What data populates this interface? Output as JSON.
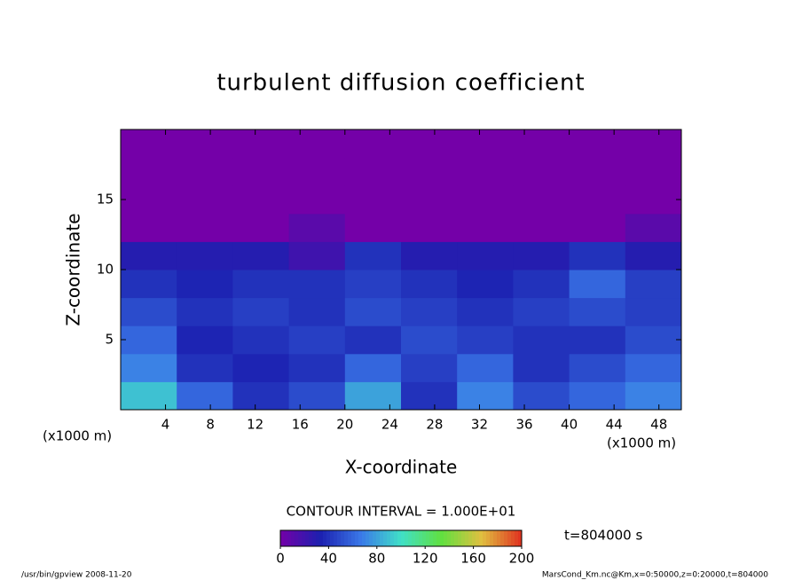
{
  "chart_data": {
    "type": "heatmap",
    "title": "turbulent diffusion coefficient",
    "x_label": "X-coordinate",
    "y_label": "Z-coordinate",
    "x_unit": "(x1000 m)",
    "y_unit": "(x1000 m)",
    "contour_interval": "CONTOUR INTERVAL = 1.000E+01",
    "time_label": "t=804000 s",
    "footer_left": "/usr/bin/gpview  2008-11-20",
    "footer_right": "MarsCond_Km.nc@Km,x=0:50000,z=0:20000,t=804000",
    "xlim": [
      0,
      50
    ],
    "ylim": [
      0,
      20
    ],
    "xticks": [
      4,
      8,
      12,
      16,
      20,
      24,
      28,
      32,
      36,
      40,
      44,
      48
    ],
    "yticks": [
      5,
      10,
      15
    ],
    "x": [
      2.5,
      7.5,
      12.5,
      17.5,
      22.5,
      27.5,
      32.5,
      37.5,
      42.5,
      47.5
    ],
    "z": [
      1,
      3,
      5,
      7,
      9,
      11,
      13,
      15,
      17,
      19
    ],
    "values": [
      [
        90,
        60,
        40,
        50,
        80,
        40,
        70,
        50,
        60,
        70
      ],
      [
        70,
        40,
        35,
        40,
        60,
        45,
        60,
        40,
        50,
        60
      ],
      [
        60,
        35,
        40,
        45,
        40,
        50,
        45,
        40,
        40,
        50
      ],
      [
        50,
        40,
        45,
        40,
        50,
        45,
        40,
        45,
        50,
        45
      ],
      [
        40,
        35,
        40,
        40,
        45,
        40,
        35,
        40,
        60,
        45
      ],
      [
        30,
        30,
        30,
        20,
        40,
        30,
        30,
        30,
        40,
        30
      ],
      [
        0,
        0,
        0,
        10,
        0,
        0,
        0,
        0,
        0,
        10
      ],
      [
        0,
        0,
        0,
        0,
        0,
        0,
        0,
        0,
        0,
        0
      ],
      [
        0,
        0,
        0,
        0,
        0,
        0,
        0,
        0,
        0,
        0
      ],
      [
        0,
        0,
        0,
        0,
        0,
        0,
        0,
        0,
        0,
        0
      ]
    ],
    "clim": [
      0,
      200
    ],
    "cticks": [
      0,
      40,
      80,
      120,
      160,
      200
    ],
    "colormap": [
      "#7400a8",
      "#1c20b0",
      "#3a78e8",
      "#40e0c8",
      "#60e040",
      "#e0c040",
      "#e03020"
    ]
  }
}
